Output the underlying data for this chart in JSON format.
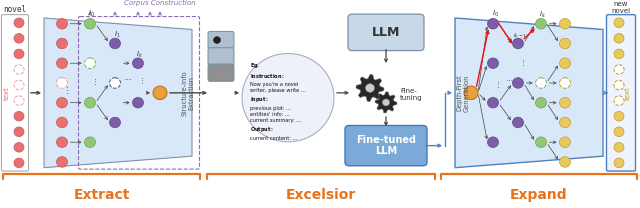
{
  "section_labels": [
    "Extract",
    "Excelsior",
    "Expand"
  ],
  "section_label_color": "#E8731A",
  "section_label_fontsize": 10,
  "bracket_color": "#E8731A",
  "node_red_solid": "#E87070",
  "node_red_dashed_edge": "#E8A0A0",
  "node_green": "#90C878",
  "node_purple": "#7B5EA7",
  "node_orange": "#E8A040",
  "node_yellow": "#E8C860",
  "bg_blue_light": "#D8E8F8",
  "arrow_color": "#555555",
  "arrow_purple": "#8A6BB5",
  "llm_box_color": "#C8D8E8",
  "llm_box_edge": "#8090A8",
  "finetuned_box_color": "#7BAAD8",
  "finetuned_box_edge": "#4878B8",
  "gear_color": "#282828",
  "text_box_color": "#EEF2F8",
  "text_box_edge": "#AAAACC",
  "red_arrow_color": "#EE1111",
  "corpus_label_color": "#8A6BB5",
  "novel_box_edge": "#AAAAAA",
  "expand_box_edge": "#5080C0"
}
